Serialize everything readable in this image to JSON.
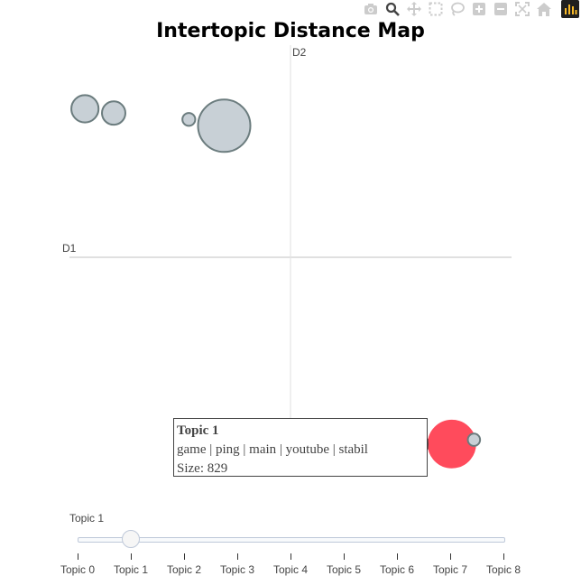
{
  "modebar": {
    "buttons": [
      {
        "name": "camera-icon",
        "title": "Download plot as a png"
      },
      {
        "name": "zoom-icon",
        "title": "Zoom"
      },
      {
        "name": "pan-icon",
        "title": "Pan"
      },
      {
        "name": "box-select-icon",
        "title": "Box Select"
      },
      {
        "name": "lasso-select-icon",
        "title": "Lasso Select"
      },
      {
        "name": "zoom-in-icon",
        "title": "Zoom in"
      },
      {
        "name": "zoom-out-icon",
        "title": "Zoom out"
      },
      {
        "name": "autoscale-icon",
        "title": "Autoscale"
      },
      {
        "name": "reset-axes-icon",
        "title": "Reset axes"
      }
    ],
    "logo": "plotly-logo-icon",
    "active_color": "#444444",
    "inactive_color": "#cccccc"
  },
  "chart_data": {
    "type": "scatter",
    "title": "Intertopic Distance Map",
    "xlabel": "D1",
    "ylabel": "D2",
    "xlim": [
      -10,
      10
    ],
    "ylim": [
      -10,
      10
    ],
    "grid": false,
    "bubble_fill": "#c8d0d6",
    "bubble_stroke": "#6b7c7e",
    "highlight_fill": "#ff4b5c",
    "topics": [
      {
        "topic": "Topic 0",
        "x": -9.3,
        "y": 7.0,
        "size": 270
      },
      {
        "topic": "Topic 1",
        "x": 7.3,
        "y": -8.8,
        "size": 829
      },
      {
        "topic": "Topic 2",
        "x": -8.0,
        "y": 6.8,
        "size": 200
      },
      {
        "topic": "Topic 3",
        "x": -3.0,
        "y": 6.2,
        "size": 1000
      },
      {
        "topic": "Topic 4",
        "x": -4.6,
        "y": 6.5,
        "size": 60
      },
      {
        "topic": "Topic 5",
        "x": 8.3,
        "y": -8.6,
        "size": 55
      }
    ],
    "highlighted_topic": "Topic 1"
  },
  "hover": {
    "title": "Topic 1",
    "words": "game | ping | main | youtube | stabil",
    "size": "Size: 829"
  },
  "slider": {
    "current_label": "Topic 1",
    "active_index": 1,
    "steps": [
      "Topic 0",
      "Topic 1",
      "Topic 2",
      "Topic 3",
      "Topic 4",
      "Topic 5",
      "Topic 6",
      "Topic 7",
      "Topic 8"
    ]
  }
}
